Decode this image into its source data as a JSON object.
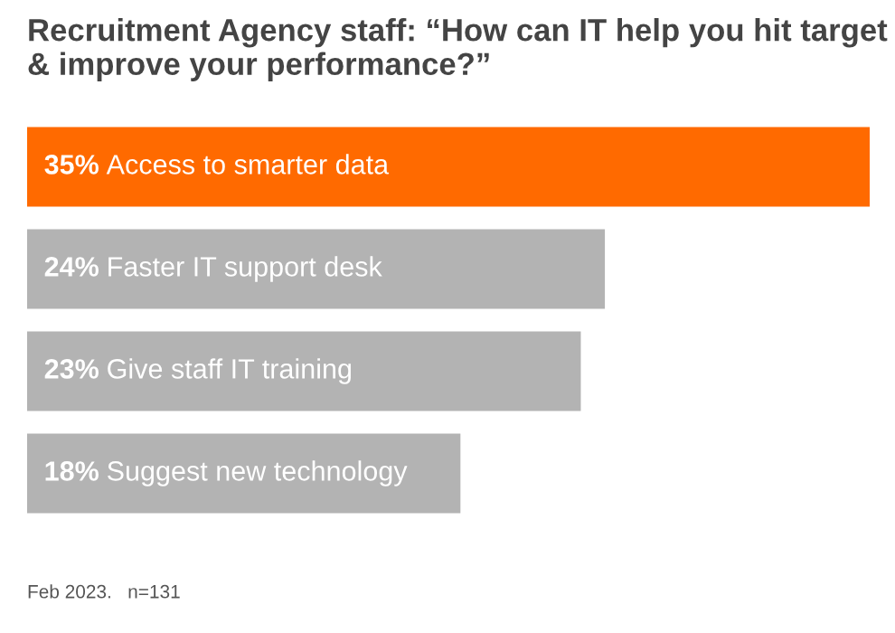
{
  "chart_data": {
    "type": "bar",
    "orientation": "horizontal",
    "title": "Recruitment Agency staff: “How can IT help you hit target & improve your performance?”",
    "categories": [
      "Access to smarter data",
      "Faster IT support desk",
      "Give staff IT training",
      "Suggest new technology"
    ],
    "values": [
      35,
      24,
      23,
      18
    ],
    "value_labels": [
      "35%",
      "24%",
      "23%",
      "18%"
    ],
    "colors": [
      "#ff6a00",
      "#b3b3b3",
      "#b3b3b3",
      "#b3b3b3"
    ],
    "annotations": [
      "Feb 2023.   n=131"
    ]
  }
}
